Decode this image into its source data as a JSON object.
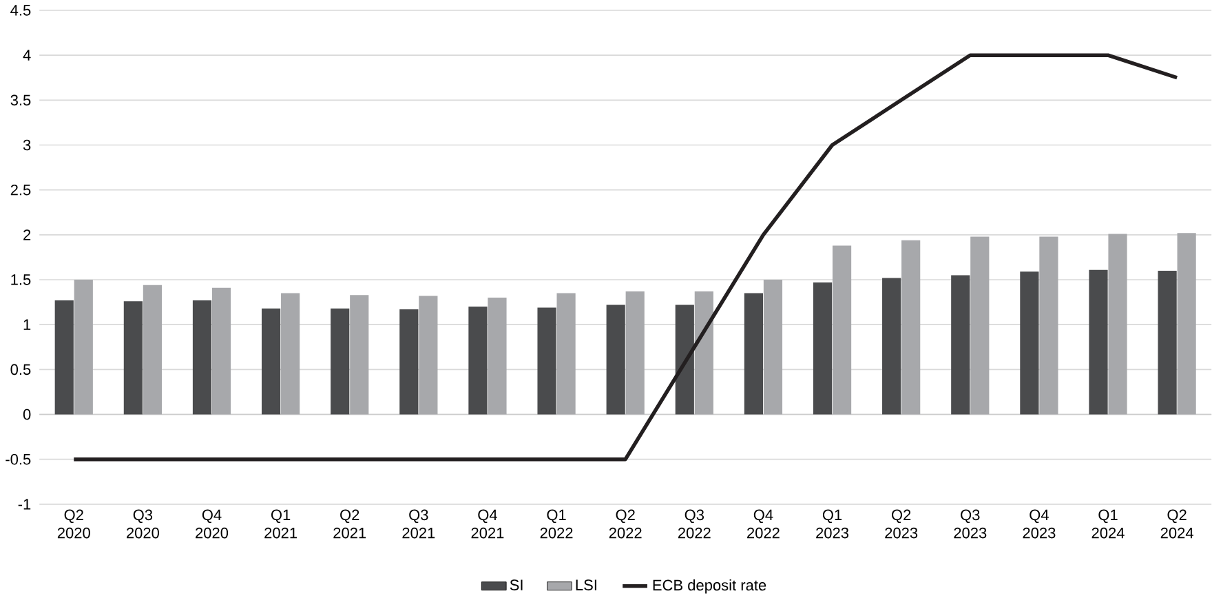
{
  "chart_data": {
    "type": "bar",
    "categories": [
      "Q2 2020",
      "Q3 2020",
      "Q4 2020",
      "Q1 2021",
      "Q2 2021",
      "Q3 2021",
      "Q4 2021",
      "Q1 2022",
      "Q2 2022",
      "Q3 2022",
      "Q4 2022",
      "Q1 2023",
      "Q2 2023",
      "Q3 2023",
      "Q4 2023",
      "Q1 2024",
      "Q2 2024"
    ],
    "series": [
      {
        "name": "SI",
        "color": "#4a4b4d",
        "values": [
          1.27,
          1.26,
          1.27,
          1.18,
          1.18,
          1.17,
          1.2,
          1.19,
          1.22,
          1.22,
          1.35,
          1.47,
          1.52,
          1.55,
          1.59,
          1.61,
          1.6
        ]
      },
      {
        "name": "LSI",
        "color": "#a7a8ab",
        "values": [
          1.5,
          1.44,
          1.41,
          1.35,
          1.33,
          1.32,
          1.3,
          1.35,
          1.37,
          1.37,
          1.5,
          1.88,
          1.94,
          1.98,
          1.98,
          2.01,
          2.02
        ]
      },
      {
        "name": "ECB deposit rate",
        "type": "line",
        "color": "#231f20",
        "values": [
          -0.5,
          -0.5,
          -0.5,
          -0.5,
          -0.5,
          -0.5,
          -0.5,
          -0.5,
          -0.5,
          0.75,
          2,
          3,
          3.5,
          4,
          4,
          4,
          3.75
        ]
      }
    ],
    "ylim": [
      -1,
      4.5
    ],
    "yticks": [
      -1,
      -0.5,
      0,
      0.5,
      1,
      1.5,
      2,
      2.5,
      3,
      3.5,
      4,
      4.5
    ],
    "grid": "y",
    "legend": "bottom",
    "marker": "none",
    "line_style": "solid"
  }
}
